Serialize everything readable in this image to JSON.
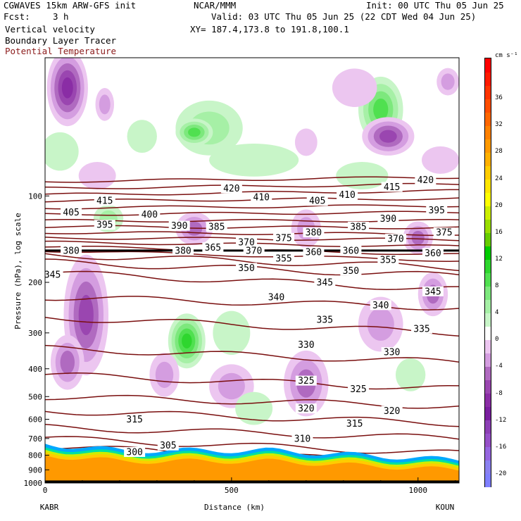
{
  "header": {
    "model_line": "CGWAVES 15km ARW-GFS init",
    "center": "NCAR/MMM",
    "init": "Init: 00 UTC Thu 05 Jun 25",
    "fcst_label": "Fcst:",
    "fcst_value": "3 h",
    "valid": "Valid: 03 UTC Thu 05 Jun 25 (22 CDT Wed 04 Jun 25)",
    "fields": [
      "Vertical velocity",
      "Boundary Layer Tracer"
    ],
    "theta_label": "Potential Temperature",
    "xy": "XY= 187.4,173.8 to 191.8,100.1"
  },
  "colors": {
    "theta_contour": "#7a0f0f",
    "theta_label": "#8b1a1a"
  },
  "chart_data": {
    "type": "contour",
    "xlabel": "Distance (km)",
    "ylabel": "Pressure (hPa), log scale",
    "x_range": [
      0,
      1110
    ],
    "y_range_hpa": [
      1000,
      33
    ],
    "y_scale": "log",
    "x_ticks": [
      0,
      500,
      1000
    ],
    "y_ticks": [
      100,
      200,
      300,
      400,
      500,
      600,
      700,
      800,
      900,
      1000
    ],
    "endpoints": {
      "left": "KABR",
      "right": "KOUN"
    },
    "tropopause_line_hpa": 155,
    "theta_levels": [
      {
        "value": 300,
        "p_left": 745,
        "p_right": 860
      },
      {
        "value": 305,
        "p_left": 700,
        "p_right": 790
      },
      {
        "value": 310,
        "p_left": 640,
        "p_right": 700
      },
      {
        "value": 315,
        "p_left": 560,
        "p_right": 620
      },
      {
        "value": 320,
        "p_left": 500,
        "p_right": 540
      },
      {
        "value": 325,
        "p_left": 420,
        "p_right": 470
      },
      {
        "value": 330,
        "p_left": 340,
        "p_right": 380
      },
      {
        "value": 335,
        "p_left": 265,
        "p_right": 300
      },
      {
        "value": 340,
        "p_left": 225,
        "p_right": 245
      },
      {
        "value": 345,
        "p_left": 185,
        "p_right": 212
      },
      {
        "value": 350,
        "p_left": 170,
        "p_right": 190
      },
      {
        "value": 355,
        "p_left": 160,
        "p_right": 178
      },
      {
        "value": 360,
        "p_left": 155,
        "p_right": 168
      },
      {
        "value": 365,
        "p_left": 150,
        "p_right": 160
      },
      {
        "value": 370,
        "p_left": 145,
        "p_right": 150
      },
      {
        "value": 375,
        "p_left": 140,
        "p_right": 142
      },
      {
        "value": 380,
        "p_left": 134,
        "p_right": 136
      },
      {
        "value": 385,
        "p_left": 128,
        "p_right": 129
      },
      {
        "value": 390,
        "p_left": 122,
        "p_right": 122
      },
      {
        "value": 395,
        "p_left": 116,
        "p_right": 114
      },
      {
        "value": 400,
        "p_left": 110,
        "p_right": 108
      },
      {
        "value": 405,
        "p_left": 104,
        "p_right": 102
      },
      {
        "value": 410,
        "p_left": 99,
        "p_right": 96
      },
      {
        "value": 415,
        "p_left": 94,
        "p_right": 91
      },
      {
        "value": 420,
        "p_left": 89,
        "p_right": 86
      }
    ],
    "theta_labels": [
      {
        "text": "300",
        "x": 240,
        "p": 780
      },
      {
        "text": "305",
        "x": 330,
        "p": 740
      },
      {
        "text": "310",
        "x": 690,
        "p": 700
      },
      {
        "text": "315",
        "x": 240,
        "p": 600
      },
      {
        "text": "315",
        "x": 830,
        "p": 620
      },
      {
        "text": "320",
        "x": 700,
        "p": 550
      },
      {
        "text": "320",
        "x": 930,
        "p": 560
      },
      {
        "text": "325",
        "x": 700,
        "p": 440
      },
      {
        "text": "325",
        "x": 840,
        "p": 470
      },
      {
        "text": "330",
        "x": 700,
        "p": 330
      },
      {
        "text": "330",
        "x": 930,
        "p": 350
      },
      {
        "text": "335",
        "x": 750,
        "p": 270
      },
      {
        "text": "335",
        "x": 1010,
        "p": 290
      },
      {
        "text": "340",
        "x": 620,
        "p": 225
      },
      {
        "text": "340",
        "x": 900,
        "p": 240
      },
      {
        "text": "345",
        "x": 20,
        "p": 188
      },
      {
        "text": "345",
        "x": 750,
        "p": 200
      },
      {
        "text": "345",
        "x": 1040,
        "p": 215
      },
      {
        "text": "350",
        "x": 540,
        "p": 178
      },
      {
        "text": "350",
        "x": 820,
        "p": 182
      },
      {
        "text": "355",
        "x": 640,
        "p": 165
      },
      {
        "text": "355",
        "x": 920,
        "p": 167
      },
      {
        "text": "360",
        "x": 720,
        "p": 157
      },
      {
        "text": "360",
        "x": 1040,
        "p": 158
      },
      {
        "text": "365",
        "x": 450,
        "p": 151
      },
      {
        "text": "370",
        "x": 540,
        "p": 145
      },
      {
        "text": "370",
        "x": 940,
        "p": 141
      },
      {
        "text": "375",
        "x": 640,
        "p": 140
      },
      {
        "text": "375",
        "x": 1070,
        "p": 134
      },
      {
        "text": "380",
        "x": 720,
        "p": 134
      },
      {
        "text": "385",
        "x": 840,
        "p": 128
      },
      {
        "text": "385",
        "x": 460,
        "p": 128
      },
      {
        "text": "390",
        "x": 360,
        "p": 127
      },
      {
        "text": "390",
        "x": 920,
        "p": 120
      },
      {
        "text": "395",
        "x": 160,
        "p": 126
      },
      {
        "text": "395",
        "x": 1050,
        "p": 112
      },
      {
        "text": "400",
        "x": 280,
        "p": 116
      },
      {
        "text": "405",
        "x": 70,
        "p": 114
      },
      {
        "text": "405",
        "x": 730,
        "p": 104
      },
      {
        "text": "410",
        "x": 580,
        "p": 101
      },
      {
        "text": "410",
        "x": 810,
        "p": 99
      },
      {
        "text": "415",
        "x": 160,
        "p": 104
      },
      {
        "text": "415",
        "x": 930,
        "p": 93
      },
      {
        "text": "420",
        "x": 500,
        "p": 94
      },
      {
        "text": "420",
        "x": 1020,
        "p": 88
      }
    ],
    "overlap_labels": [
      {
        "text": "380",
        "x": 70,
        "p": 155
      },
      {
        "text": "380",
        "x": 370,
        "p": 155
      },
      {
        "text": "370",
        "x": 560,
        "p": 155
      },
      {
        "text": "360",
        "x": 820,
        "p": 155
      }
    ],
    "vv_blobs": [
      {
        "x": 60,
        "p": 42,
        "rx": 55,
        "rp": 0.14,
        "v": -10
      },
      {
        "x": 160,
        "p": 48,
        "rx": 25,
        "rp": 0.06,
        "v": -4
      },
      {
        "x": 440,
        "p": 58,
        "rx": 90,
        "rp": 0.1,
        "v": 4
      },
      {
        "x": 400,
        "p": 60,
        "rx": 50,
        "rp": 0.05,
        "v": 8
      },
      {
        "x": 260,
        "p": 62,
        "rx": 40,
        "rp": 0.06,
        "v": 2
      },
      {
        "x": 40,
        "p": 70,
        "rx": 50,
        "rp": 0.07,
        "v": 2
      },
      {
        "x": 900,
        "p": 50,
        "rx": 60,
        "rp": 0.12,
        "v": 8
      },
      {
        "x": 830,
        "p": 42,
        "rx": 60,
        "rp": 0.07,
        "v": -2
      },
      {
        "x": 1080,
        "p": 40,
        "rx": 30,
        "rp": 0.05,
        "v": -4
      },
      {
        "x": 920,
        "p": 62,
        "rx": 70,
        "rp": 0.07,
        "v": -8
      },
      {
        "x": 700,
        "p": 65,
        "rx": 30,
        "rp": 0.05,
        "v": -2
      },
      {
        "x": 560,
        "p": 75,
        "rx": 120,
        "rp": 0.06,
        "v": 2
      },
      {
        "x": 850,
        "p": 85,
        "rx": 70,
        "rp": 0.05,
        "v": 2
      },
      {
        "x": 1060,
        "p": 75,
        "rx": 50,
        "rp": 0.05,
        "v": -2
      },
      {
        "x": 140,
        "p": 85,
        "rx": 50,
        "rp": 0.05,
        "v": -2
      },
      {
        "x": 400,
        "p": 130,
        "rx": 50,
        "rp": 0.06,
        "v": -6
      },
      {
        "x": 700,
        "p": 130,
        "rx": 40,
        "rp": 0.07,
        "v": -4
      },
      {
        "x": 1000,
        "p": 140,
        "rx": 40,
        "rp": 0.06,
        "v": -6
      },
      {
        "x": 170,
        "p": 120,
        "rx": 40,
        "rp": 0.05,
        "v": 4
      },
      {
        "x": 110,
        "p": 260,
        "rx": 60,
        "rp": 0.22,
        "v": -8
      },
      {
        "x": 380,
        "p": 320,
        "rx": 50,
        "rp": 0.1,
        "v": 10
      },
      {
        "x": 60,
        "p": 380,
        "rx": 45,
        "rp": 0.1,
        "v": -6
      },
      {
        "x": 320,
        "p": 420,
        "rx": 40,
        "rp": 0.08,
        "v": -4
      },
      {
        "x": 500,
        "p": 460,
        "rx": 60,
        "rp": 0.08,
        "v": -4
      },
      {
        "x": 700,
        "p": 450,
        "rx": 60,
        "rp": 0.12,
        "v": -6
      },
      {
        "x": 900,
        "p": 280,
        "rx": 60,
        "rp": 0.1,
        "v": -4
      },
      {
        "x": 1040,
        "p": 220,
        "rx": 40,
        "rp": 0.08,
        "v": -6
      },
      {
        "x": 500,
        "p": 300,
        "rx": 50,
        "rp": 0.08,
        "v": 2
      },
      {
        "x": 560,
        "p": 550,
        "rx": 50,
        "rp": 0.06,
        "v": 2
      },
      {
        "x": 980,
        "p": 420,
        "rx": 40,
        "rp": 0.06,
        "v": 2
      }
    ],
    "colorbar": {
      "units": "cm s⁻¹",
      "min": -22,
      "max": 42,
      "step": 2,
      "tick_labels": [
        36,
        32,
        28,
        24,
        20,
        16,
        12,
        8,
        4,
        0,
        -4,
        -8,
        -12,
        -16,
        -20
      ],
      "colors": {
        "-22": "#7f7fff",
        "-20": "#8a80f0",
        "-18": "#9666e0",
        "-16": "#9650c8",
        "-14": "#8c3fb5",
        "-12": "#7a1f9f",
        "-10": "#8a2da5",
        "-8": "#9a46b0",
        "-6": "#b06ac0",
        "-4": "#d49de0",
        "-2": "#ecc6f0",
        "0": "#ffffff",
        "2": "#c8f5c8",
        "4": "#a6f0a6",
        "6": "#7de87d",
        "8": "#50e050",
        "10": "#2ed62e",
        "12": "#00cc00",
        "14": "#66cc00",
        "16": "#99dd00",
        "18": "#ccee00",
        "20": "#ffff00",
        "22": "#ffe600",
        "24": "#ffcc00",
        "26": "#ffb000",
        "28": "#ff9900",
        "30": "#ff8000",
        "32": "#ff6600",
        "34": "#ff4d00",
        "36": "#ff3300",
        "38": "#ff1a00",
        "40": "#ff0000"
      }
    }
  }
}
